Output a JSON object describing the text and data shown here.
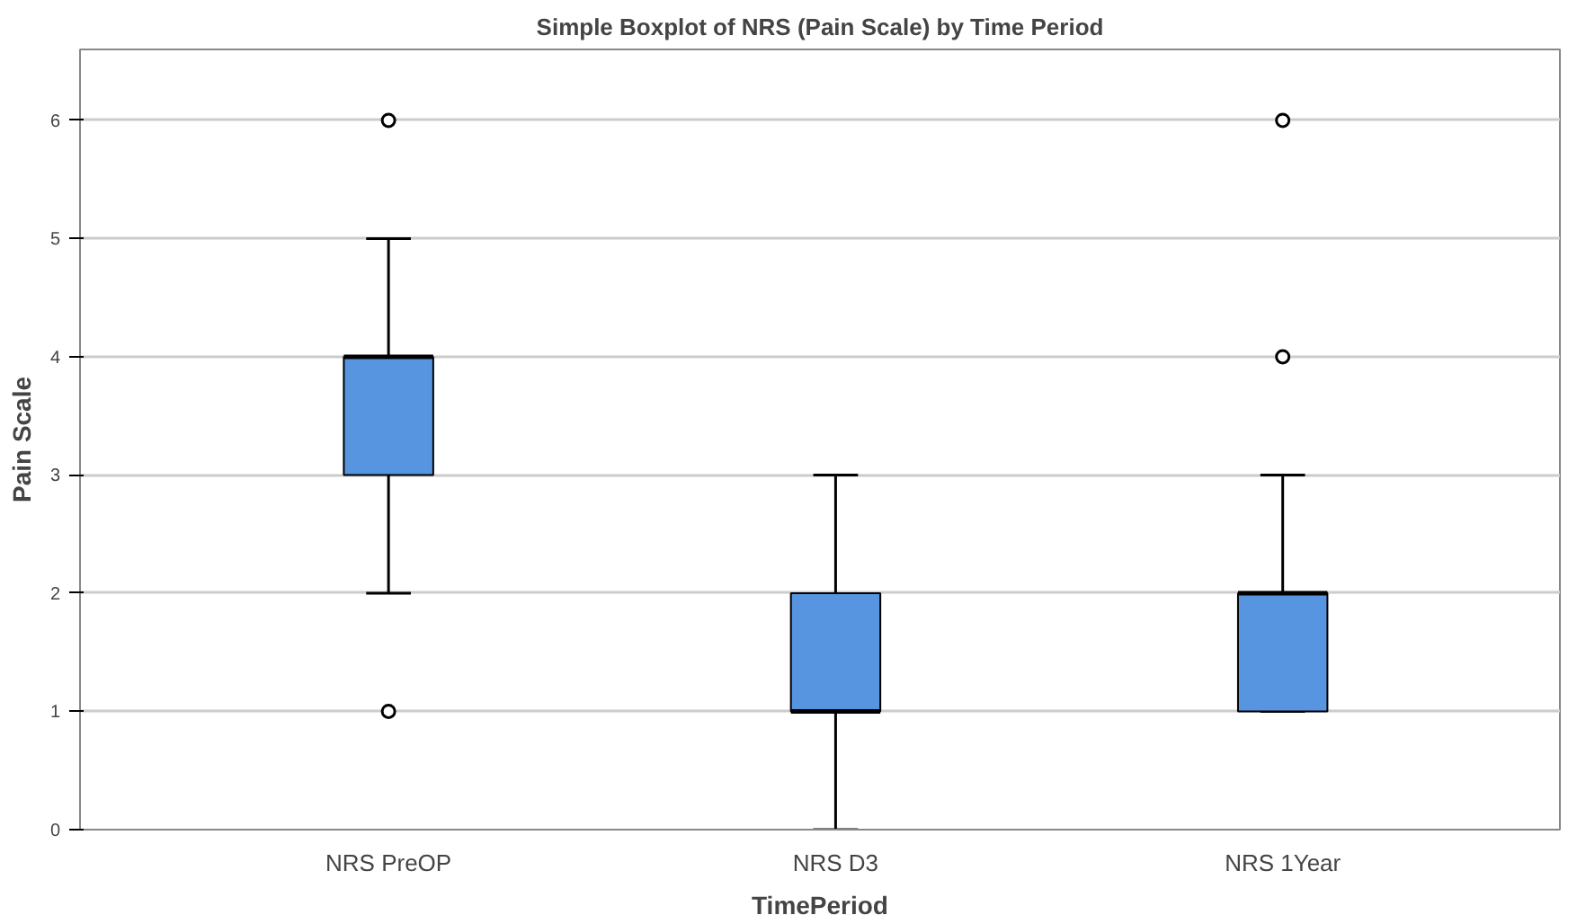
{
  "chart_data": {
    "type": "box",
    "title": "Simple Boxplot of NRS (Pain Scale) by Time Period",
    "xlabel": "TimePeriod",
    "ylabel": "Pain Scale",
    "categories": [
      "NRS PreOP",
      "NRS D3",
      "NRS 1Year"
    ],
    "color": "#5795e0",
    "boxes": [
      {
        "low": 2,
        "q1": 3,
        "median": 4,
        "q3": 4,
        "high": 5,
        "outliers": [
          1,
          6
        ]
      },
      {
        "low": 0,
        "q1": 1,
        "median": 1,
        "q3": 2,
        "high": 3
      },
      {
        "low": 1,
        "q1": 1,
        "median": 2,
        "q3": 2,
        "high": 3,
        "outliers": [
          4,
          6
        ]
      }
    ],
    "ylim": [
      0,
      6.6
    ],
    "yticks": [
      0,
      1,
      2,
      3,
      4,
      5,
      6
    ],
    "grid": "y"
  }
}
